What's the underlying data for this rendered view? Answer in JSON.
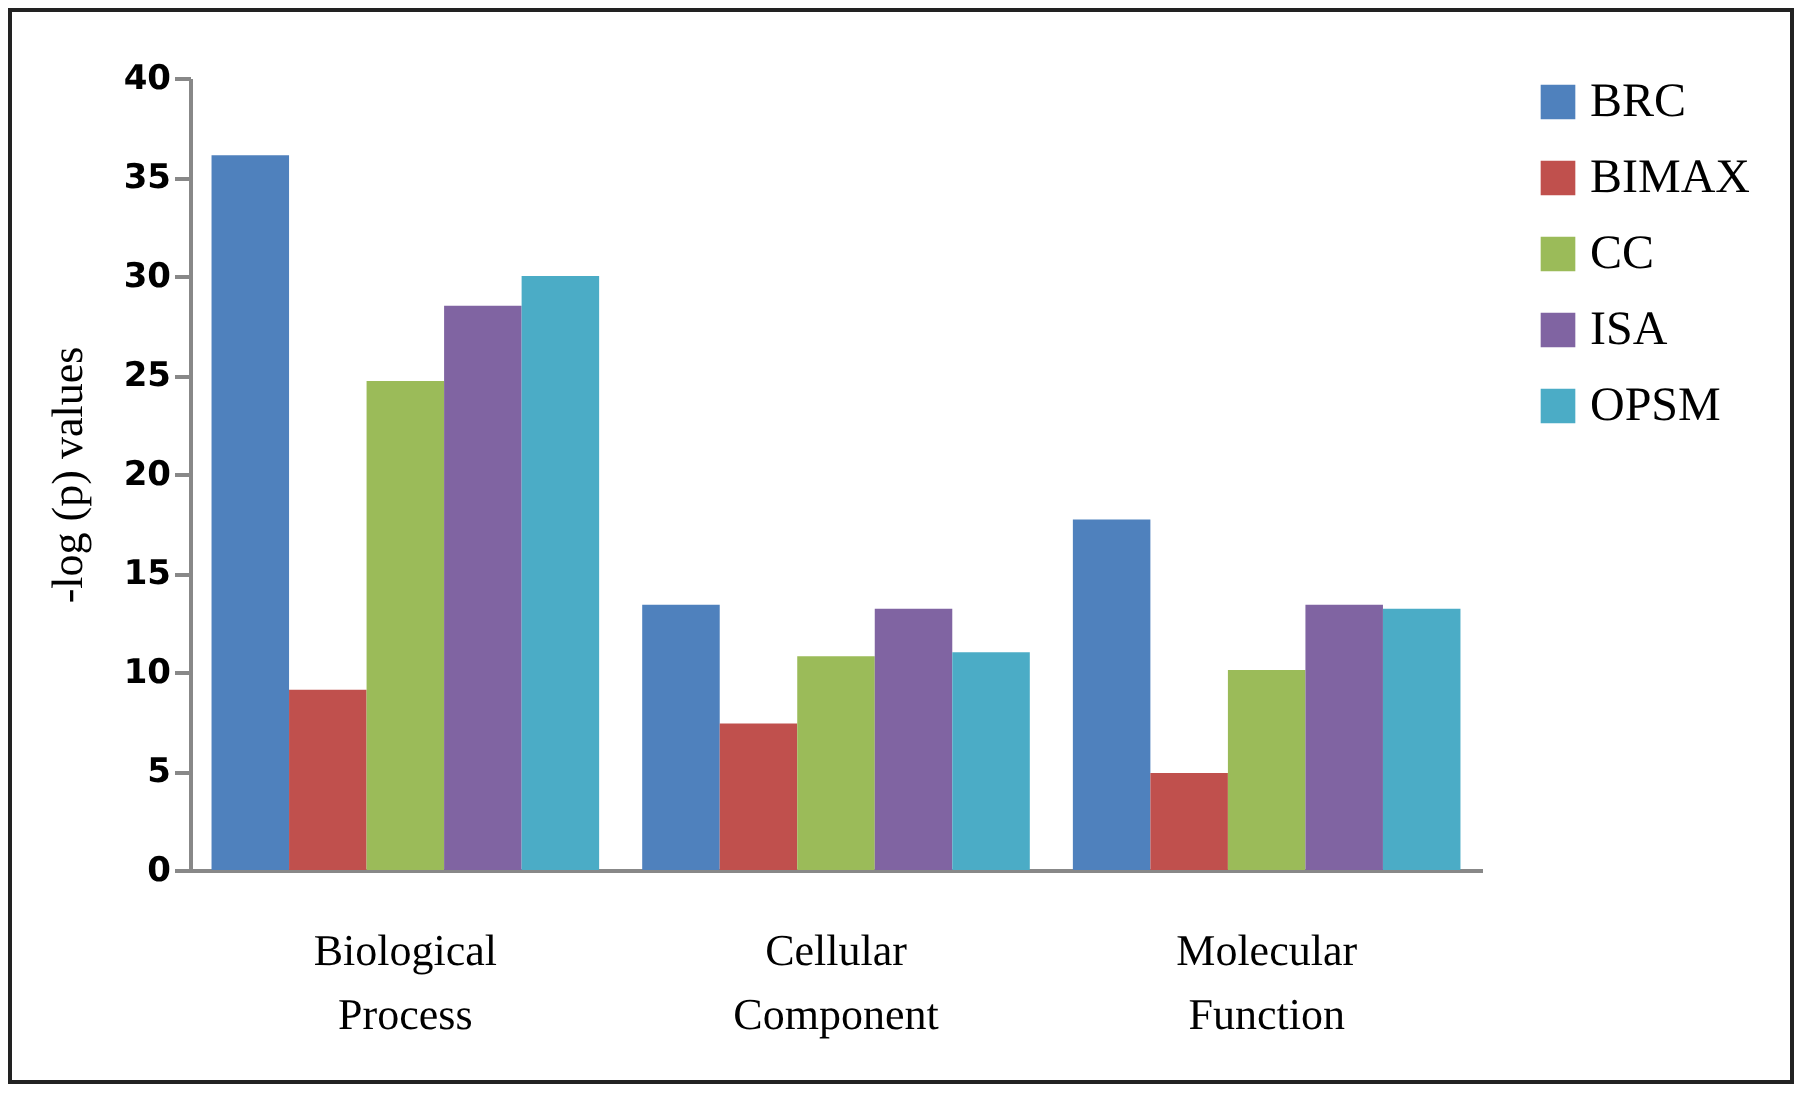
{
  "chart_data": {
    "type": "bar",
    "ylabel": "-log (p) values",
    "categories": [
      "Biological Process",
      "Cellular Component",
      "Molecular Function"
    ],
    "series": [
      {
        "name": "BRC",
        "color": "#4f81bd",
        "values": [
          36.1,
          13.4,
          17.7
        ]
      },
      {
        "name": "BIMAX",
        "color": "#c0504d",
        "values": [
          9.1,
          7.4,
          4.9
        ]
      },
      {
        "name": "CC",
        "color": "#9bbb59",
        "values": [
          24.7,
          10.8,
          10.1
        ]
      },
      {
        "name": "ISA",
        "color": "#8064a2",
        "values": [
          28.5,
          13.2,
          13.4
        ]
      },
      {
        "name": "OPSM",
        "color": "#4bacc6",
        "values": [
          30.0,
          11.0,
          13.2
        ]
      }
    ],
    "ylim": [
      0,
      40
    ],
    "yticks": [
      0,
      5,
      10,
      15,
      20,
      25,
      30,
      35,
      40
    ],
    "grid": false,
    "legend": "right"
  }
}
